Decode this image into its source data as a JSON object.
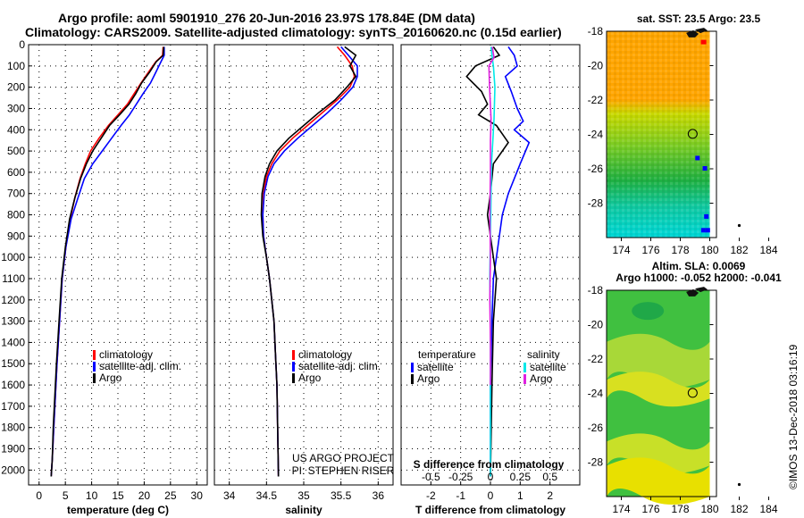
{
  "title": {
    "line1": "Argo profile: aoml 5901910_276 20-Jun-2016 23.97S 178.84E (DM data)",
    "line2": "Climatology: CARS2009. Satellite-adjusted climatology: synTS_20160620.nc (0.15d earlier)"
  },
  "colors": {
    "climatology": "#ff0000",
    "satellite": "#0000ff",
    "argo": "#000000",
    "argo_salinity": "#e020e0",
    "satellite_salinity": "#00e8e8"
  },
  "credits": {
    "project": "US ARGO PROJECT",
    "pi": "PI: STEPHEN RISER"
  },
  "stamp": "©IMOS 13-Dec-2018 03:16:19",
  "chart_data": [
    {
      "id": "temperature",
      "type": "line",
      "xlabel": "temperature (deg C)",
      "ylabel": "",
      "xlim": [
        -2,
        32
      ],
      "ylim": [
        2070,
        0
      ],
      "xticks": [
        "0",
        "5",
        "10",
        "15",
        "20",
        "25",
        "30"
      ],
      "xtick_values": [
        0,
        5,
        10,
        15,
        20,
        25,
        30
      ],
      "yticks": [
        "0",
        "100",
        "200",
        "300",
        "400",
        "500",
        "600",
        "700",
        "800",
        "900",
        "1000",
        "1100",
        "1200",
        "1300",
        "1400",
        "1500",
        "1600",
        "1700",
        "1800",
        "1900",
        "2000"
      ],
      "ytick_values": [
        0,
        100,
        200,
        300,
        400,
        500,
        600,
        700,
        800,
        900,
        1000,
        1100,
        1200,
        1300,
        1400,
        1500,
        1600,
        1700,
        1800,
        1900,
        2000
      ],
      "legend": [
        "climatology",
        "satellite-adj. clim.",
        "Argo"
      ],
      "series": [
        {
          "name": "climatology",
          "color": "#ff0000",
          "x": [
            23.6,
            23.5,
            22.2,
            20.8,
            19.4,
            18.1,
            16.8,
            15.0,
            13.2,
            11.4,
            9.8,
            8.8,
            7.8,
            6.8,
            5.9,
            5.1,
            4.4,
            3.9,
            3.4,
            3.1,
            2.8,
            2.5,
            2.3
          ],
          "y": [
            10,
            50,
            80,
            130,
            180,
            230,
            280,
            330,
            380,
            440,
            500,
            560,
            630,
            720,
            820,
            950,
            1100,
            1300,
            1500,
            1650,
            1800,
            1950,
            2030
          ]
        },
        {
          "name": "satellite-adj. clim.",
          "color": "#0000ff",
          "x": [
            23.8,
            23.8,
            23.2,
            22.2,
            21.2,
            19.8,
            18.5,
            17.2,
            15.6,
            13.8,
            12.0,
            10.2,
            8.6,
            7.4,
            6.1,
            5.1,
            4.4,
            3.9,
            3.4,
            3.1,
            2.8,
            2.5,
            2.3
          ],
          "y": [
            10,
            50,
            80,
            130,
            180,
            230,
            280,
            330,
            380,
            440,
            500,
            560,
            630,
            720,
            820,
            950,
            1100,
            1300,
            1500,
            1650,
            1800,
            1950,
            2030
          ]
        },
        {
          "name": "Argo",
          "color": "#000000",
          "x": [
            23.7,
            23.6,
            22.3,
            21.0,
            19.5,
            18.4,
            17.1,
            15.3,
            13.4,
            11.8,
            10.2,
            9.0,
            7.9,
            6.8,
            5.8,
            5.0,
            4.3,
            3.8,
            3.3,
            3.0,
            2.7,
            2.5,
            2.3
          ],
          "y": [
            10,
            50,
            80,
            130,
            180,
            230,
            280,
            330,
            380,
            440,
            500,
            560,
            630,
            720,
            820,
            950,
            1100,
            1300,
            1500,
            1650,
            1800,
            1950,
            2030
          ]
        }
      ]
    },
    {
      "id": "salinity",
      "type": "line",
      "xlabel": "salinity",
      "xlim": [
        33.8,
        36.2
      ],
      "ylim": [
        2070,
        0
      ],
      "xticks": [
        "34",
        "34.5",
        "35",
        "35.5",
        "36"
      ],
      "xtick_values": [
        34,
        34.5,
        35,
        35.5,
        36
      ],
      "legend": [
        "climatology",
        "satellite-adj. clim.",
        "Argo"
      ],
      "series": [
        {
          "name": "climatology",
          "color": "#ff0000",
          "x": [
            35.45,
            35.55,
            35.65,
            35.68,
            35.62,
            35.45,
            35.25,
            35.05,
            34.85,
            34.68,
            34.57,
            34.5,
            34.46,
            34.45,
            34.46,
            34.5,
            34.54,
            34.57,
            34.6,
            34.62,
            34.64,
            34.65,
            34.66
          ],
          "y": [
            10,
            50,
            100,
            150,
            200,
            260,
            320,
            380,
            440,
            500,
            560,
            620,
            700,
            800,
            900,
            1000,
            1100,
            1200,
            1300,
            1450,
            1600,
            1800,
            2030
          ]
        },
        {
          "name": "satellite-adj. clim.",
          "color": "#0000ff",
          "x": [
            35.5,
            35.6,
            35.72,
            35.72,
            35.66,
            35.5,
            35.32,
            35.12,
            34.92,
            34.74,
            34.6,
            34.52,
            34.47,
            34.45,
            34.46,
            34.5,
            34.54,
            34.57,
            34.6,
            34.62,
            34.64,
            34.65,
            34.66
          ],
          "y": [
            10,
            50,
            100,
            150,
            200,
            260,
            320,
            380,
            440,
            500,
            560,
            620,
            700,
            800,
            900,
            1000,
            1100,
            1200,
            1300,
            1450,
            1600,
            1800,
            2030
          ]
        },
        {
          "name": "Argo",
          "color": "#000000",
          "x": [
            35.55,
            35.7,
            35.62,
            35.7,
            35.58,
            35.42,
            35.2,
            35.0,
            34.8,
            34.64,
            34.54,
            34.48,
            34.44,
            34.43,
            34.45,
            34.5,
            34.54,
            34.57,
            34.6,
            34.62,
            34.64,
            34.65,
            34.66
          ],
          "y": [
            10,
            50,
            100,
            150,
            200,
            260,
            320,
            380,
            440,
            500,
            560,
            620,
            700,
            800,
            900,
            1000,
            1100,
            1200,
            1300,
            1450,
            1600,
            1800,
            2030
          ]
        }
      ]
    },
    {
      "id": "differences",
      "type": "line",
      "xlabel": "T difference from climatology",
      "top_label": "S difference from climatology",
      "xlim": [
        -3,
        3
      ],
      "ylim": [
        2070,
        0
      ],
      "xticks": [
        "-2",
        "-1",
        "0",
        "1",
        "2"
      ],
      "xtick_values": [
        -2,
        -1,
        0,
        1,
        2
      ],
      "sticks": [
        "-0.5",
        "-0.25",
        "0",
        "0.25",
        "0.5"
      ],
      "stick_values": [
        -0.5,
        -0.25,
        0,
        0.25,
        0.5
      ],
      "legend_temperature_title": "temperature",
      "legend_salinity_title": "salinity",
      "legend_entries": [
        "satellite",
        "Argo",
        "satellite",
        "Argo"
      ],
      "series": [
        {
          "name": "T satellite",
          "color": "#0000ff",
          "x": [
            0.6,
            0.8,
            0.9,
            0.5,
            0.7,
            0.9,
            1.1,
            0.8,
            1.3,
            1.0,
            0.6,
            0.4,
            0.3,
            0.2,
            0.1,
            0.05,
            0.0,
            0.0
          ],
          "y": [
            10,
            50,
            100,
            150,
            220,
            300,
            360,
            400,
            460,
            560,
            700,
            800,
            900,
            1000,
            1100,
            1300,
            1600,
            2030
          ]
        },
        {
          "name": "T Argo",
          "color": "#000000",
          "x": [
            0.1,
            0.3,
            -0.5,
            -0.8,
            -0.3,
            -0.1,
            -0.4,
            0.2,
            0.6,
            0.1,
            0.0,
            -0.1,
            0.0,
            0.1,
            0.2,
            0.1,
            0.05,
            0.0
          ],
          "y": [
            10,
            50,
            100,
            150,
            220,
            280,
            330,
            380,
            460,
            560,
            700,
            800,
            900,
            1000,
            1100,
            1300,
            1600,
            2030
          ]
        },
        {
          "name": "S satellite",
          "color": "#00e8e8",
          "x": [
            0.02,
            0.05,
            0.1,
            0.15,
            0.12,
            0.08,
            0.04,
            0.02,
            0.0,
            -0.02,
            0.0,
            0.0,
            0.0
          ],
          "y": [
            10,
            50,
            100,
            200,
            350,
            450,
            550,
            700,
            900,
            1100,
            1300,
            1600,
            2030
          ]
        },
        {
          "name": "S Argo",
          "color": "#e020e0",
          "x": [
            0.06,
            0.12,
            -0.05,
            -0.03,
            0.02,
            0.0,
            0.0,
            -0.02,
            0.0,
            -0.02,
            0.0,
            0.0
          ],
          "y": [
            10,
            60,
            100,
            200,
            350,
            450,
            600,
            800,
            1000,
            1200,
            1400,
            1600
          ]
        }
      ]
    },
    {
      "id": "sst_map",
      "type": "heatmap",
      "title": "sat. SST: 23.5  Argo: 23.5",
      "xlim": [
        173,
        185
      ],
      "ylim": [
        -30,
        -18
      ],
      "xticks": [
        "174",
        "176",
        "178",
        "180",
        "182",
        "184"
      ],
      "xtick_values": [
        174,
        176,
        178,
        180,
        182,
        184
      ],
      "yticks": [
        "-18",
        "-20",
        "-22",
        "-24",
        "-26",
        "-28"
      ],
      "ytick_values": [
        -18,
        -20,
        -22,
        -24,
        -26,
        -28
      ],
      "marker": {
        "lon": 178.84,
        "lat": -23.97
      }
    },
    {
      "id": "sla_map",
      "type": "heatmap",
      "title": "Altim. SLA: 0.0069",
      "subtitle": "Argo h1000: -0.052 h2000: -0.041",
      "xlim": [
        173,
        185
      ],
      "ylim": [
        -30,
        -18
      ],
      "xticks": [
        "174",
        "176",
        "178",
        "180",
        "182",
        "184"
      ],
      "xtick_values": [
        174,
        176,
        178,
        180,
        182,
        184
      ],
      "yticks": [
        "-18",
        "-20",
        "-22",
        "-24",
        "-26",
        "-28"
      ],
      "ytick_values": [
        -18,
        -20,
        -22,
        -24,
        -26,
        -28
      ],
      "marker": {
        "lon": 178.84,
        "lat": -23.97
      }
    }
  ]
}
